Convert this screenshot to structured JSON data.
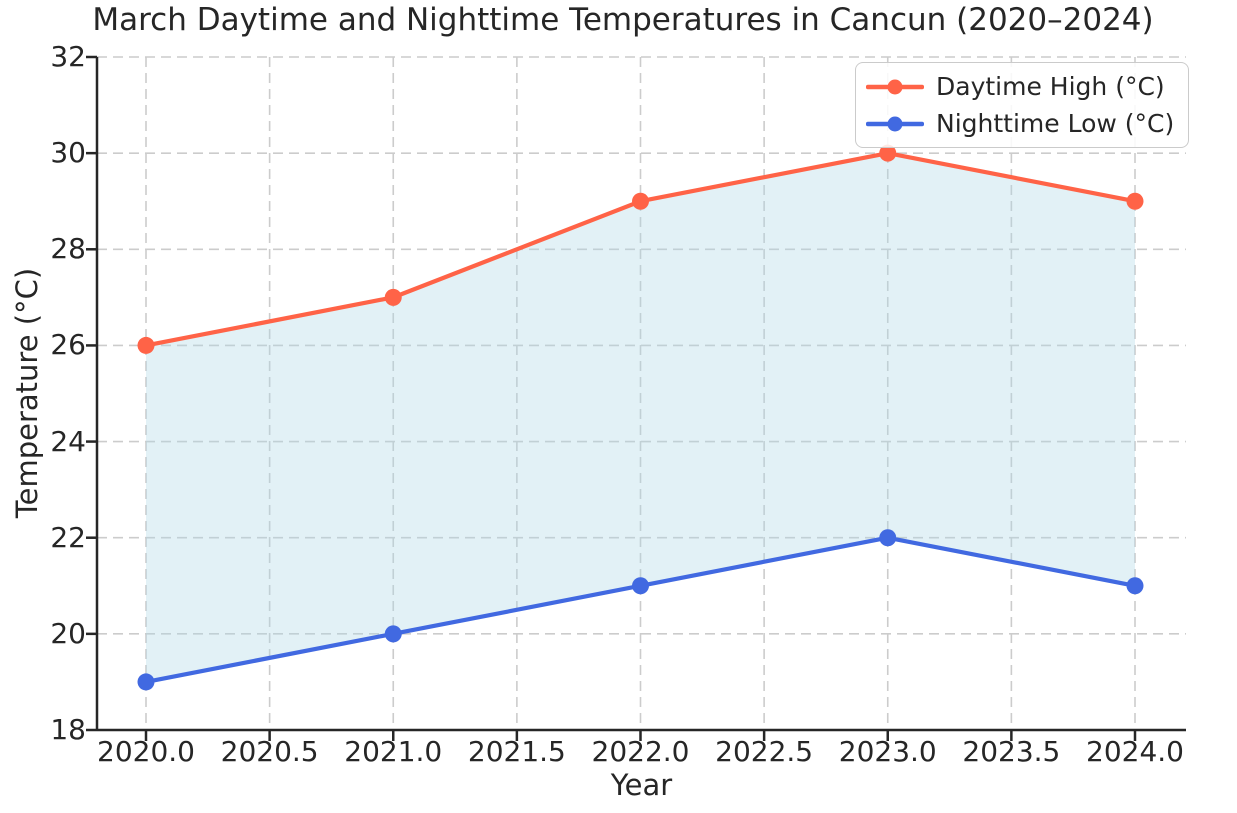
{
  "chart_data": {
    "type": "line",
    "title": "March Daytime and Nighttime Temperatures in Cancun (2020–2024)",
    "xlabel": "Year",
    "ylabel": "Temperature (°C)",
    "x": [
      2020,
      2021,
      2022,
      2023,
      2024
    ],
    "series": [
      {
        "name": "Daytime High (°C)",
        "values": [
          26,
          27,
          29,
          30,
          29
        ],
        "color": "#ff6347",
        "marker": "circle"
      },
      {
        "name": "Nighttime Low (°C)",
        "values": [
          19,
          20,
          21,
          22,
          21
        ],
        "color": "#4169e1",
        "marker": "circle"
      }
    ],
    "fill_between": {
      "between": [
        "Daytime High (°C)",
        "Nighttime Low (°C)"
      ],
      "color": "#add8e6",
      "opacity": 0.35
    },
    "xticks": [
      "2020.0",
      "2020.5",
      "2021.0",
      "2021.5",
      "2022.0",
      "2022.5",
      "2023.0",
      "2023.5",
      "2024.0"
    ],
    "yticks": [
      "18",
      "20",
      "22",
      "24",
      "26",
      "28",
      "30",
      "32"
    ],
    "ylim": [
      18,
      32
    ],
    "grid": true,
    "grid_color": "#cccccc",
    "axis_color": "#262626",
    "legend": {
      "position": "upper right"
    }
  }
}
